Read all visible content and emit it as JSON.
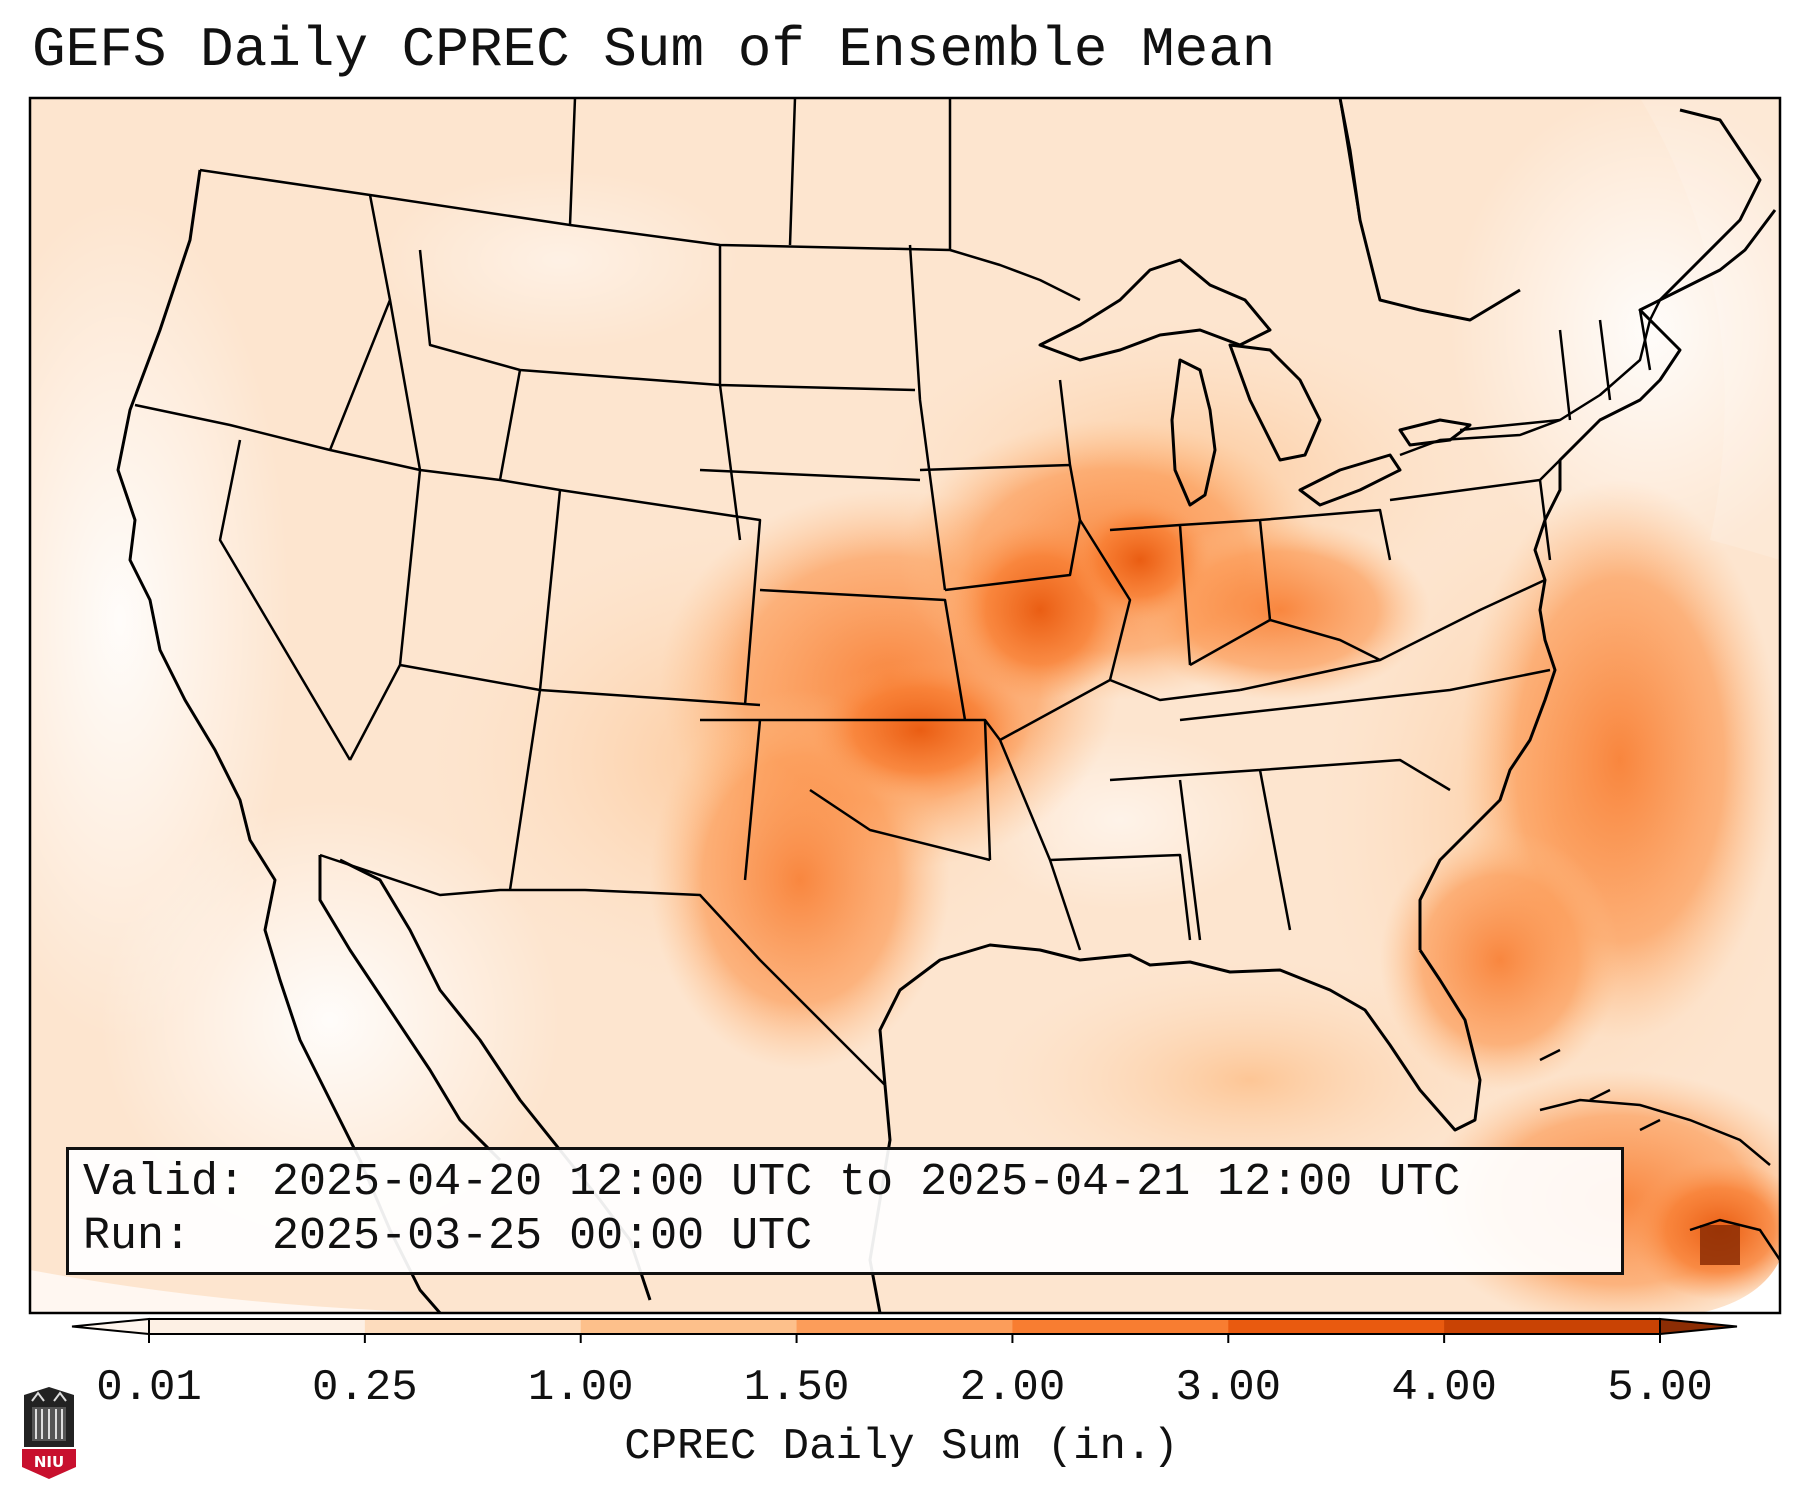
{
  "title": "GEFS Daily CPREC Sum of Ensemble Mean",
  "info": {
    "valid_label": "Valid:",
    "valid_value": "2025-04-20 12:00 UTC to 2025-04-21 12:00 UTC",
    "run_label": "Run:",
    "run_value": "2025-03-25 00:00 UTC"
  },
  "colorbar": {
    "label": "CPREC Daily Sum (in.)",
    "ticks": [
      "0.01",
      "0.25",
      "1.00",
      "1.50",
      "2.00",
      "3.00",
      "4.00",
      "5.00"
    ],
    "colors": [
      "#fdf0e4",
      "#fddcbd",
      "#fdc08b",
      "#fc9d5a",
      "#f87d31",
      "#e95a0f",
      "#c94304"
    ],
    "extend_low_color": "#fff6ee",
    "extend_high_color": "#8c2d04"
  },
  "map": {
    "land_base_color": "#fde5cf",
    "ocean_base_color": "#fff4ea",
    "boundary_color": "#000000",
    "logo": "NIU"
  }
}
